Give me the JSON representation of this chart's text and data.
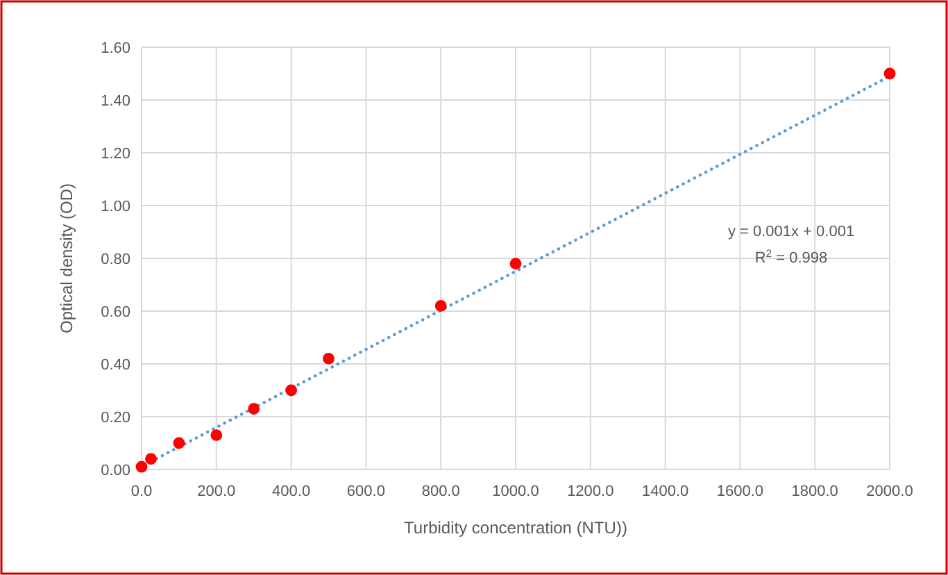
{
  "chart_data": {
    "type": "scatter",
    "xlabel": "Turbidity concentration (NTU))",
    "ylabel": "Optical density (OD)",
    "xlim": [
      0,
      2000
    ],
    "ylim": [
      0,
      1.6
    ],
    "xticks": [
      {
        "value": 0,
        "label": "0.0"
      },
      {
        "value": 200,
        "label": "200.0"
      },
      {
        "value": 400,
        "label": "400.0"
      },
      {
        "value": 600,
        "label": "600.0"
      },
      {
        "value": 800,
        "label": "800.0"
      },
      {
        "value": 1000,
        "label": "1000.0"
      },
      {
        "value": 1200,
        "label": "1200.0"
      },
      {
        "value": 1400,
        "label": "1400.0"
      },
      {
        "value": 1600,
        "label": "1600.0"
      },
      {
        "value": 1800,
        "label": "1800.0"
      },
      {
        "value": 2000,
        "label": "2000.0"
      }
    ],
    "yticks": [
      {
        "value": 0,
        "label": "0.00"
      },
      {
        "value": 0.2,
        "label": "0.20"
      },
      {
        "value": 0.4,
        "label": "0.40"
      },
      {
        "value": 0.6,
        "label": "0.60"
      },
      {
        "value": 0.8,
        "label": "0.80"
      },
      {
        "value": 1,
        "label": "1.00"
      },
      {
        "value": 1.2,
        "label": "1.20"
      },
      {
        "value": 1.4,
        "label": "1.40"
      },
      {
        "value": 1.6,
        "label": "1.60"
      }
    ],
    "grid": true,
    "annotations": [
      "y = 0.001x + 0.001",
      "R$^{2}$ = 0.998"
    ],
    "series": [
      {
        "type": "line",
        "color": "#5b9bd5",
        "line_style": "dotted",
        "x": [
          25,
          2000
        ],
        "values": [
          0.03,
          1.49
        ]
      },
      {
        "color": "#ff0000",
        "marker": "circle",
        "x": [
          0,
          25,
          100,
          200,
          300,
          400,
          500,
          800,
          1000,
          2000
        ],
        "values": [
          0.01,
          0.04,
          0.1,
          0.13,
          0.23,
          0.3,
          0.42,
          0.62,
          0.78,
          1.5
        ]
      }
    ]
  }
}
